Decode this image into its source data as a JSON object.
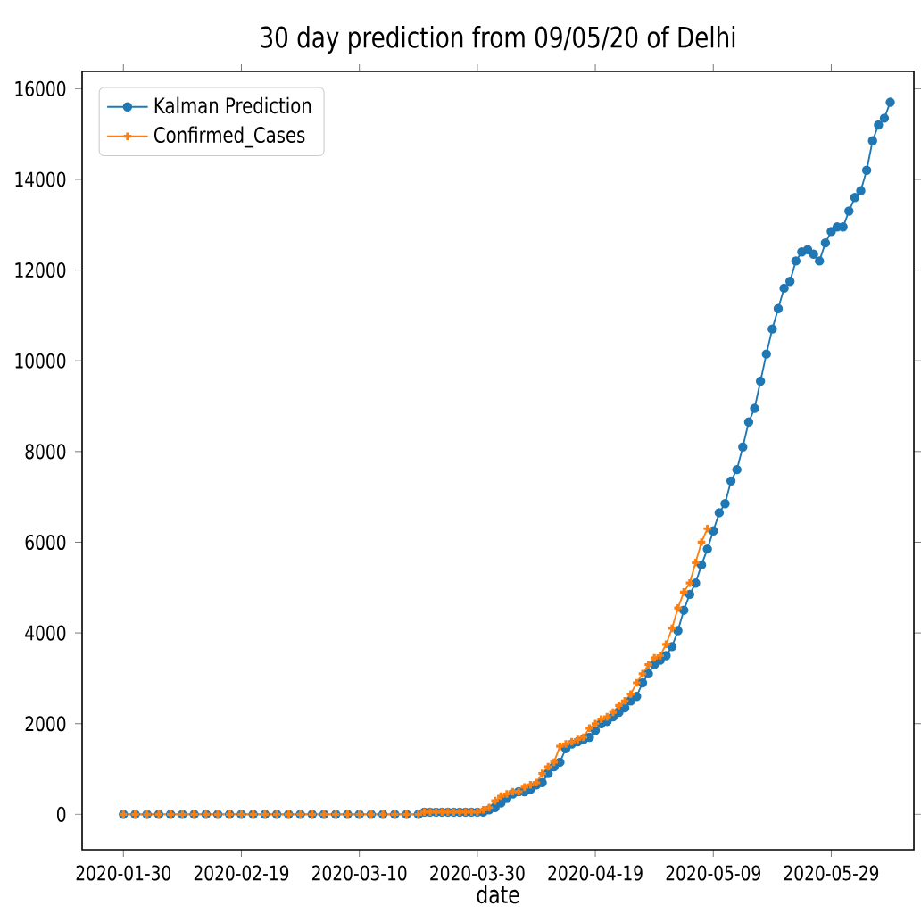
{
  "chart_data": {
    "type": "line",
    "title": "30 day prediction from 09/05/20 of Delhi",
    "xlabel": "date",
    "xlim": [
      "2020-01-23",
      "2020-06-12"
    ],
    "ylim": [
      -780,
      16380
    ],
    "xticks": [
      "2020-01-30",
      "2020-02-19",
      "2020-03-10",
      "2020-03-30",
      "2020-04-19",
      "2020-05-09",
      "2020-05-29"
    ],
    "yticks": [
      0,
      2000,
      4000,
      6000,
      8000,
      10000,
      12000,
      14000,
      16000
    ],
    "legend": "top left",
    "grid": false,
    "line_style": "solid",
    "series": [
      {
        "name": "Kalman Prediction",
        "color": "#1f77b4",
        "marker": "circle",
        "x": [
          "2020-01-30",
          "2020-02-01",
          "2020-02-03",
          "2020-02-05",
          "2020-02-07",
          "2020-02-09",
          "2020-02-11",
          "2020-02-13",
          "2020-02-15",
          "2020-02-17",
          "2020-02-19",
          "2020-02-21",
          "2020-02-23",
          "2020-02-25",
          "2020-02-27",
          "2020-02-29",
          "2020-03-02",
          "2020-03-04",
          "2020-03-06",
          "2020-03-08",
          "2020-03-10",
          "2020-03-12",
          "2020-03-14",
          "2020-03-16",
          "2020-03-18",
          "2020-03-20",
          "2020-03-21",
          "2020-03-22",
          "2020-03-23",
          "2020-03-24",
          "2020-03-25",
          "2020-03-26",
          "2020-03-27",
          "2020-03-28",
          "2020-03-29",
          "2020-03-30",
          "2020-03-31",
          "2020-04-01",
          "2020-04-02",
          "2020-04-03",
          "2020-04-04",
          "2020-04-05",
          "2020-04-06",
          "2020-04-07",
          "2020-04-08",
          "2020-04-09",
          "2020-04-10",
          "2020-04-11",
          "2020-04-12",
          "2020-04-13",
          "2020-04-14",
          "2020-04-15",
          "2020-04-16",
          "2020-04-17",
          "2020-04-18",
          "2020-04-19",
          "2020-04-20",
          "2020-04-21",
          "2020-04-22",
          "2020-04-23",
          "2020-04-24",
          "2020-04-25",
          "2020-04-26",
          "2020-04-27",
          "2020-04-28",
          "2020-04-29",
          "2020-04-30",
          "2020-05-01",
          "2020-05-02",
          "2020-05-03",
          "2020-05-04",
          "2020-05-05",
          "2020-05-06",
          "2020-05-07",
          "2020-05-08",
          "2020-05-09",
          "2020-05-10",
          "2020-05-11",
          "2020-05-12",
          "2020-05-13",
          "2020-05-14",
          "2020-05-15",
          "2020-05-16",
          "2020-05-17",
          "2020-05-18",
          "2020-05-19",
          "2020-05-20",
          "2020-05-21",
          "2020-05-22",
          "2020-05-23",
          "2020-05-24",
          "2020-05-25",
          "2020-05-26",
          "2020-05-27",
          "2020-05-28",
          "2020-05-29",
          "2020-05-30",
          "2020-05-31",
          "2020-06-01",
          "2020-06-02",
          "2020-06-03",
          "2020-06-04",
          "2020-06-05",
          "2020-06-06",
          "2020-06-07",
          "2020-06-08"
        ],
        "values": [
          0,
          0,
          0,
          0,
          0,
          0,
          0,
          0,
          0,
          0,
          0,
          0,
          0,
          0,
          0,
          0,
          0,
          0,
          0,
          0,
          0,
          0,
          0,
          0,
          0,
          0,
          50,
          50,
          50,
          50,
          50,
          50,
          50,
          50,
          50,
          50,
          50,
          100,
          150,
          250,
          350,
          450,
          500,
          500,
          550,
          650,
          700,
          900,
          1050,
          1150,
          1450,
          1550,
          1600,
          1650,
          1700,
          1850,
          2000,
          2050,
          2150,
          2250,
          2350,
          2500,
          2600,
          2900,
          3100,
          3300,
          3400,
          3500,
          3700,
          4050,
          4500,
          4850,
          5100,
          5500,
          5850,
          6250,
          6650,
          6850,
          7350,
          7600,
          8100,
          8650,
          8950,
          9550,
          10150,
          10700,
          11150,
          11600,
          11750,
          12200,
          12400,
          12450,
          12350,
          12200,
          12600,
          12850,
          12950,
          12950,
          13300,
          13600,
          13750,
          14200,
          14850,
          15200,
          15350,
          15700
        ]
      },
      {
        "name": "Confirmed_Cases",
        "color": "#ff7f0e",
        "marker": "cross",
        "x": [
          "2020-01-30",
          "2020-02-01",
          "2020-02-03",
          "2020-02-05",
          "2020-02-07",
          "2020-02-09",
          "2020-02-11",
          "2020-02-13",
          "2020-02-15",
          "2020-02-17",
          "2020-02-19",
          "2020-02-21",
          "2020-02-23",
          "2020-02-25",
          "2020-02-27",
          "2020-02-29",
          "2020-03-02",
          "2020-03-04",
          "2020-03-06",
          "2020-03-08",
          "2020-03-10",
          "2020-03-12",
          "2020-03-14",
          "2020-03-16",
          "2020-03-18",
          "2020-03-20",
          "2020-03-21",
          "2020-03-22",
          "2020-03-23",
          "2020-03-24",
          "2020-03-25",
          "2020-03-26",
          "2020-03-27",
          "2020-03-28",
          "2020-03-29",
          "2020-03-30",
          "2020-03-31",
          "2020-04-01",
          "2020-04-02",
          "2020-04-03",
          "2020-04-04",
          "2020-04-05",
          "2020-04-06",
          "2020-04-07",
          "2020-04-08",
          "2020-04-09",
          "2020-04-10",
          "2020-04-11",
          "2020-04-12",
          "2020-04-13",
          "2020-04-14",
          "2020-04-15",
          "2020-04-16",
          "2020-04-17",
          "2020-04-18",
          "2020-04-19",
          "2020-04-20",
          "2020-04-21",
          "2020-04-22",
          "2020-04-23",
          "2020-04-24",
          "2020-04-25",
          "2020-04-26",
          "2020-04-27",
          "2020-04-28",
          "2020-04-29",
          "2020-04-30",
          "2020-05-01",
          "2020-05-02",
          "2020-05-03",
          "2020-05-04",
          "2020-05-05",
          "2020-05-06",
          "2020-05-07",
          "2020-05-08"
        ],
        "values": [
          0,
          0,
          0,
          0,
          0,
          0,
          0,
          0,
          0,
          0,
          0,
          0,
          0,
          0,
          0,
          0,
          0,
          0,
          0,
          0,
          0,
          0,
          0,
          0,
          0,
          0,
          50,
          50,
          50,
          50,
          50,
          50,
          50,
          50,
          50,
          50,
          100,
          150,
          300,
          400,
          450,
          500,
          500,
          600,
          650,
          700,
          900,
          1050,
          1150,
          1500,
          1550,
          1600,
          1650,
          1700,
          1900,
          2000,
          2100,
          2150,
          2250,
          2400,
          2500,
          2650,
          2900,
          3100,
          3300,
          3450,
          3500,
          3750,
          4100,
          4550,
          4900,
          5100,
          5550,
          6000,
          6300
        ]
      }
    ]
  }
}
